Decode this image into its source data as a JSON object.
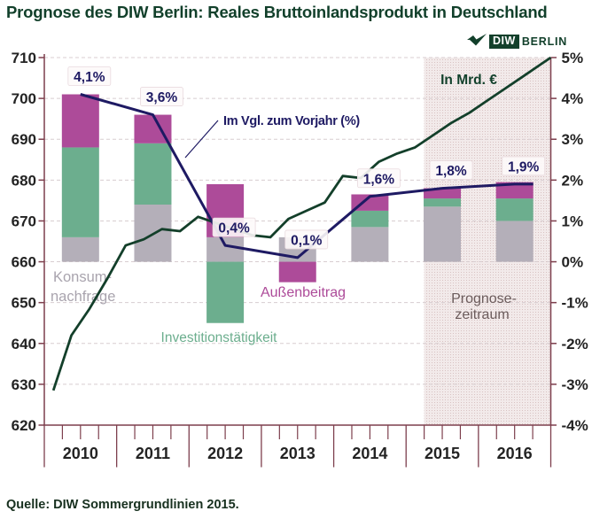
{
  "header": {
    "title": "Prognose des DIW Berlin: Reales Bruttoinlandsprodukt in Deutschland"
  },
  "logo": {
    "diw": "DIW",
    "berlin": "BERLIN"
  },
  "footer": {
    "source": "Quelle: DIW Sommergrundlinien 2015."
  },
  "colors": {
    "title_green": "#12402b",
    "gdp_line": "#133f2a",
    "growth_line": "#1e1a63",
    "bar_gray": "#b4afb9",
    "bar_green": "#6cae8e",
    "bar_magenta": "#ad4b99",
    "axis": "#7d3f4d",
    "grid": "#d8cdd0",
    "tick_label": "#232323",
    "forecast_bg": "#f2eaea",
    "forecast_dot": "#d8c2c2",
    "label_gray": "#a9a4ae",
    "label_taupe": "#6b5b5b",
    "annotation_bg": "#fdf9f9",
    "annotation_border": "#e9dade"
  },
  "chart_data": {
    "type": "combo: stacked contribution bars (bar) + annual growth line (line) + quarterly GDP level line (line)",
    "title": "Prognose des DIW Berlin: Reales Bruttoinlandsprodukt in Deutschland",
    "years": [
      "2010",
      "2011",
      "2012",
      "2013",
      "2014",
      "2015",
      "2016"
    ],
    "left_axis": {
      "title": "In Mrd. €",
      "min": 620,
      "max": 710,
      "step": 10,
      "ticks": [
        620,
        630,
        640,
        650,
        660,
        670,
        680,
        690,
        700,
        710
      ]
    },
    "right_axis": {
      "unit": "%",
      "min": -4,
      "max": 5,
      "step": 1,
      "ticks": [
        "-4%",
        "-3%",
        "-2%",
        "-1%",
        "0%",
        "1%",
        "2%",
        "3%",
        "4%",
        "5%"
      ]
    },
    "zero_alignment": "0% on right axis = 660 Mrd. € on left axis; 1% = 10 Mrd. €",
    "grid": "horizontal dashed gridlines every 10 Mrd. € (630–710)",
    "bars": {
      "unit": "contribution to GDP growth, percentage points",
      "series": [
        {
          "name": "Konsumnachfrage",
          "label_lines": [
            "Konsum-",
            "nachfrage"
          ],
          "color_key": "bar_gray",
          "values_pp": [
            0.6,
            1.4,
            0.6,
            0.6,
            0.85,
            1.35,
            1.0
          ]
        },
        {
          "name": "Investitionstätigkeit",
          "label_lines": [
            "Investitionstätigkeit"
          ],
          "color_key": "bar_green",
          "values_pp": [
            2.2,
            1.5,
            -1.5,
            0,
            0.4,
            0.2,
            0.55
          ]
        },
        {
          "name": "Außenbeitrag",
          "label_lines": [
            "Außenbeitrag"
          ],
          "color_key": "bar_magenta",
          "values_pp": [
            1.3,
            0.7,
            1.3,
            -0.5,
            0.4,
            0.25,
            0.4
          ]
        }
      ]
    },
    "growth_line": {
      "label": "Im Vgl. zum Vorjahr (%)",
      "values_pct": [
        4.1,
        3.6,
        0.4,
        0.1,
        1.6,
        1.8,
        1.9
      ],
      "point_labels": [
        "4,1%",
        "3,6%",
        "0,4%",
        "0,1%",
        "1,6%",
        "1,8%",
        "1,9%"
      ]
    },
    "gdp_line": {
      "label": "In Mrd. €",
      "quarterly_values_mrd": {
        "2010": [
          628.5,
          642,
          648.5,
          656
        ],
        "2011": [
          664,
          665.5,
          668,
          667.5
        ],
        "2012": [
          671,
          669.5,
          668,
          666.5
        ],
        "2013": [
          666,
          670.5,
          672.5,
          674.5
        ],
        "2014": [
          681,
          680.5,
          684.5,
          686.5
        ],
        "2015": [
          688,
          691,
          694,
          696.5
        ],
        "2016": [
          699.5,
          702.5,
          705.5,
          708.5
        ]
      },
      "end_value_mrd": 710
    },
    "forecast_region": {
      "label_lines": [
        "Prognose-",
        "zeitraum"
      ],
      "start": "2015 Q2",
      "start_year_frac": 5.25,
      "end_year_frac": 7
    }
  }
}
